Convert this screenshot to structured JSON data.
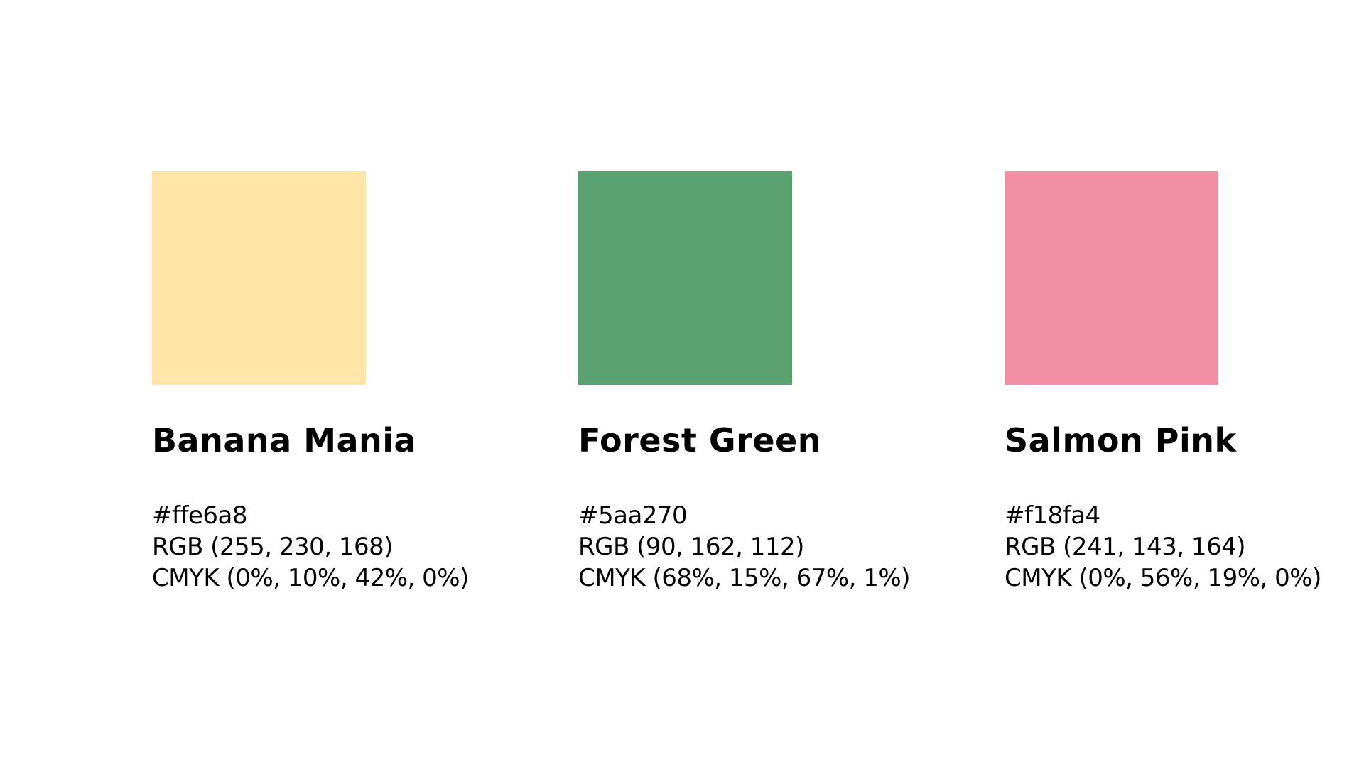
{
  "colors": [
    {
      "name": "Banana Mania",
      "hex": "#ffe6a8",
      "rgb": "RGB (255, 230, 168)",
      "cmyk": "CMYK (0%, 10%, 42%, 0%)",
      "swatch_color": "#ffe6a8"
    },
    {
      "name": "Forest Green",
      "hex": "#5aa270",
      "rgb": "RGB (90, 162, 112)",
      "cmyk": "CMYK (68%, 15%, 67%, 1%)",
      "swatch_color": "#5aa270"
    },
    {
      "name": "Salmon Pink",
      "hex": "#f18fa4",
      "rgb": "RGB (241, 143, 164)",
      "cmyk": "CMYK (0%, 56%, 19%, 0%)",
      "swatch_color": "#f18fa4"
    }
  ]
}
